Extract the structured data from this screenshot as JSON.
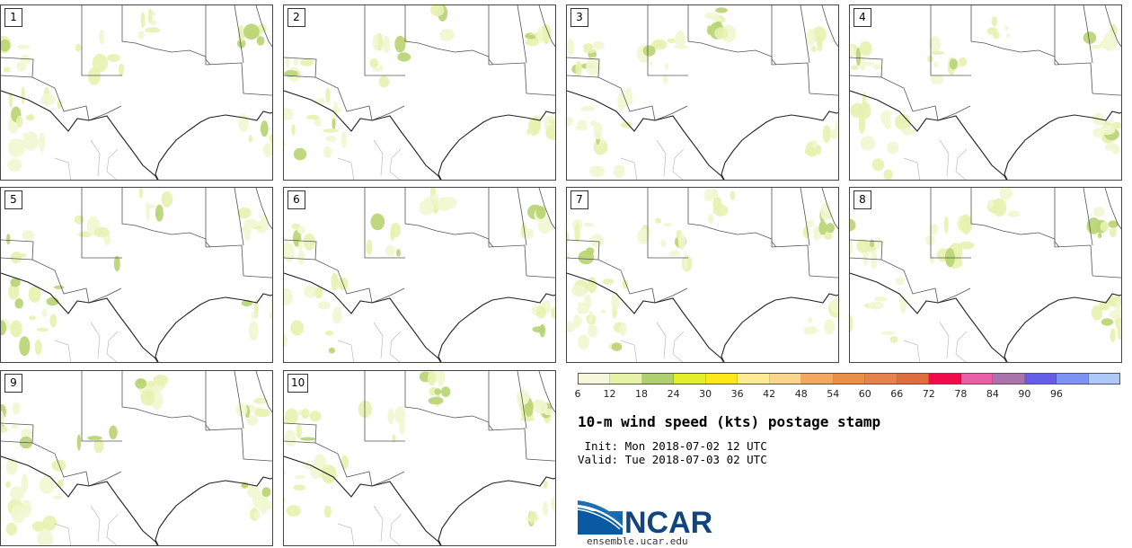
{
  "panels": [
    {
      "label": "1"
    },
    {
      "label": "2"
    },
    {
      "label": "3"
    },
    {
      "label": "4"
    },
    {
      "label": "5"
    },
    {
      "label": "6"
    },
    {
      "label": "7"
    },
    {
      "label": "8"
    },
    {
      "label": "9"
    },
    {
      "label": "10"
    }
  ],
  "colorbar": {
    "colors": [
      "#f5f8dc",
      "#e6f2a8",
      "#aed070",
      "#e3ef2a",
      "#fde81c",
      "#fdeb93",
      "#fad68c",
      "#f2a860",
      "#ec9045",
      "#e7824c",
      "#de6e3e",
      "#ee0c4a",
      "#ea5ea8",
      "#a974ac",
      "#655de8",
      "#7d94f4",
      "#aec8f8"
    ],
    "ticks": [
      "6",
      "12",
      "18",
      "24",
      "30",
      "36",
      "42",
      "48",
      "54",
      "60",
      "66",
      "72",
      "78",
      "84",
      "90",
      "96"
    ]
  },
  "title": "10-m wind speed (kts) postage stamp",
  "init": " Init: Mon 2018-07-02 12 UTC",
  "valid": "Valid: Tue 2018-07-03 02 UTC",
  "logo": {
    "text": "NCAR",
    "url": "ensemble.ucar.edu"
  }
}
